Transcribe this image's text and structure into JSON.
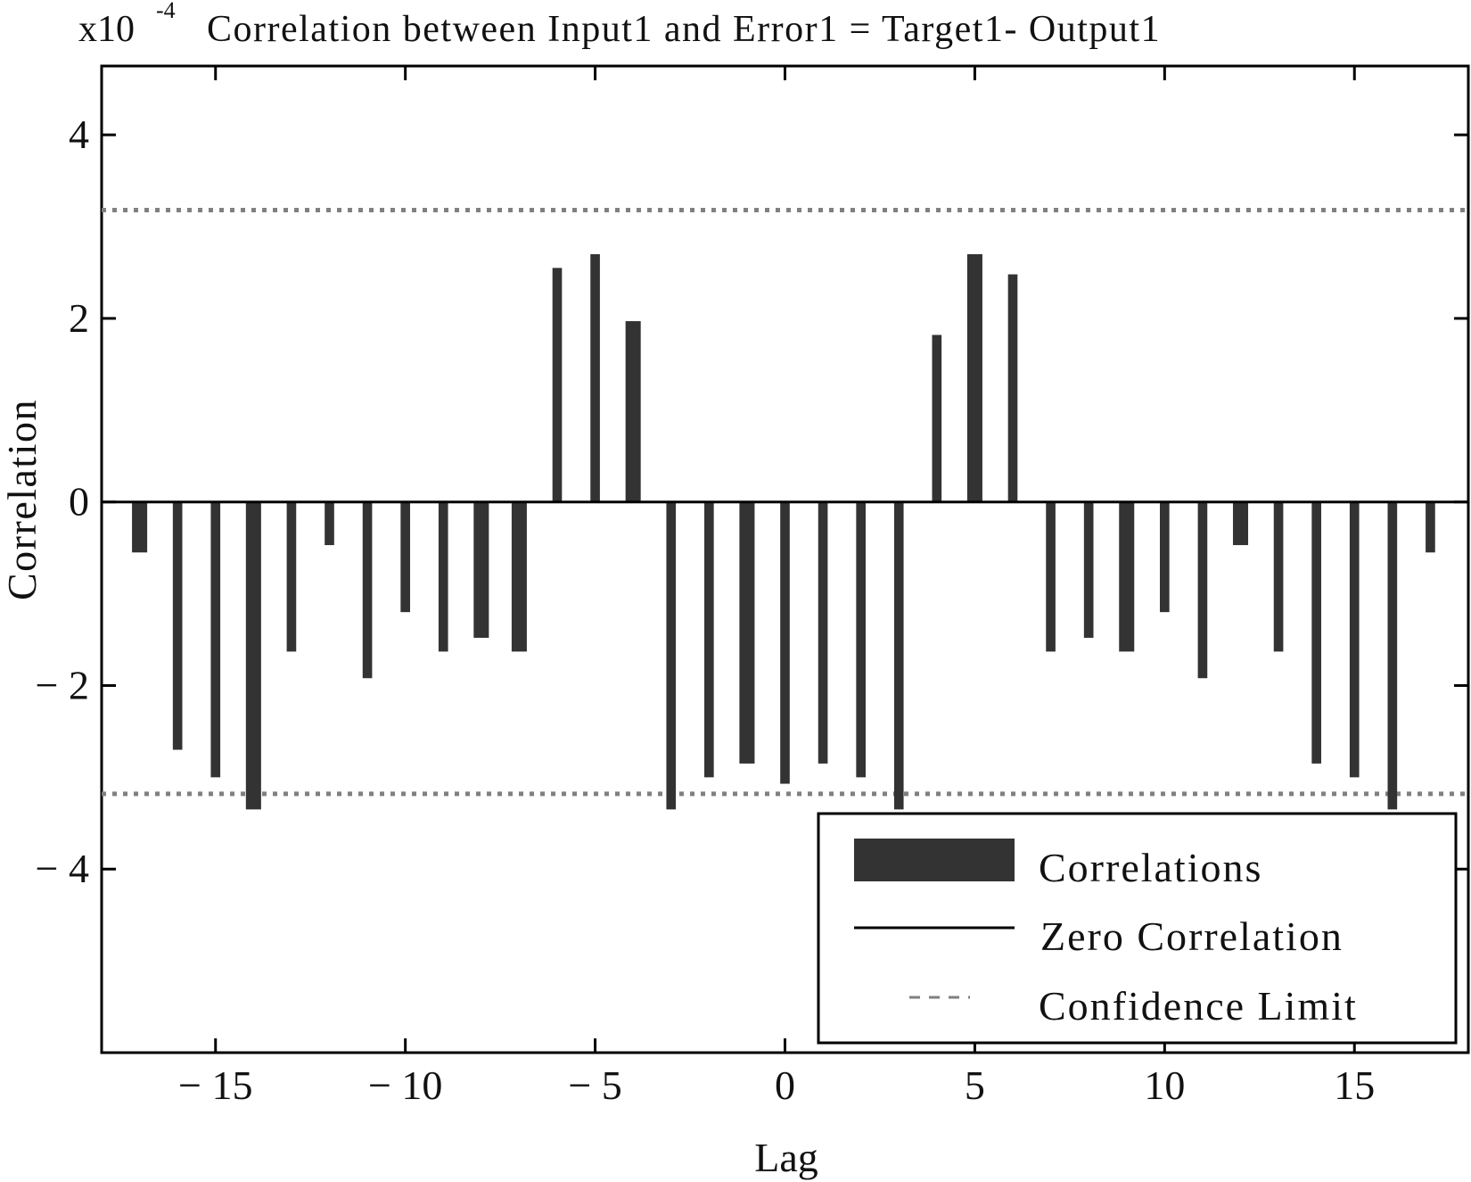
{
  "colors": {
    "bar": "#333333",
    "axis": "#000000",
    "confidence": "#808080",
    "background": "#ffffff"
  },
  "chart_data": {
    "type": "bar",
    "title_prefix": "x10",
    "title_exponent": "-4",
    "title": "Correlation between Input1 and Error1 = Target1- Output1",
    "xlabel": "Lag",
    "ylabel": "Correlation",
    "y_scale_note": "x10^-4",
    "xlim": [
      -18,
      18
    ],
    "ylim": [
      -6,
      4.75
    ],
    "xticks": [
      -15,
      -10,
      -5,
      0,
      5,
      10,
      15
    ],
    "xtick_labels": [
      "-15",
      "-10",
      "-5",
      "0",
      "5",
      "10",
      "15"
    ],
    "yticks": [
      -4,
      -2,
      0,
      2,
      4
    ],
    "ytick_labels": [
      "-4",
      "-2",
      "0",
      "2",
      "4"
    ],
    "lags": [
      -17,
      -16,
      -15,
      -14,
      -13,
      -12,
      -11,
      -10,
      -9,
      -8,
      -7,
      -6,
      -5,
      -4,
      -3,
      -2,
      -1,
      0,
      1,
      2,
      3,
      4,
      5,
      6,
      7,
      8,
      9,
      10,
      11,
      12,
      13,
      14,
      15,
      16,
      17
    ],
    "values": [
      -0.55,
      -2.7,
      -3.0,
      -3.35,
      -1.63,
      -0.47,
      -1.92,
      -1.2,
      -1.63,
      -1.48,
      -1.63,
      2.55,
      2.7,
      1.97,
      -3.35,
      -3.0,
      -2.85,
      -3.07,
      -2.85,
      -3.0,
      -3.35,
      1.82,
      2.7,
      2.48,
      -1.63,
      -1.48,
      -1.63,
      -1.2,
      -1.92,
      -0.47,
      -1.63,
      -2.85,
      -3.0,
      -3.35,
      -0.55
    ],
    "bar_widths": [
      0.4,
      0.25,
      0.25,
      0.4,
      0.25,
      0.25,
      0.25,
      0.25,
      0.25,
      0.4,
      0.4,
      0.25,
      0.25,
      0.4,
      0.25,
      0.25,
      0.4,
      0.25,
      0.25,
      0.25,
      0.25,
      0.25,
      0.4,
      0.25,
      0.25,
      0.25,
      0.4,
      0.25,
      0.25,
      0.4,
      0.25,
      0.25,
      0.25,
      0.25,
      0.25
    ],
    "confidence_limit": 3.18,
    "legend": {
      "position": "bottom-right",
      "entries": [
        "Correlations",
        "Zero Correlation",
        "Confidence Limit"
      ]
    }
  }
}
